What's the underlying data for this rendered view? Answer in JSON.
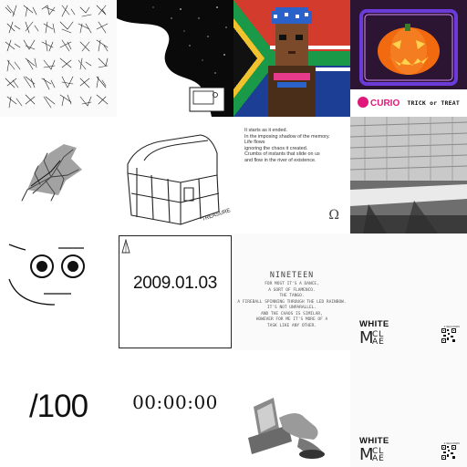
{
  "tiles": {
    "scribbles": {
      "icon": "scribble-grid"
    },
    "night_sky": {
      "icon": "computer-smoke-illustration"
    },
    "pixel_portrait": {
      "icon": "pixel-portrait-flag"
    },
    "halloween": {
      "brand": "CURIO",
      "title": "TRICK or TREAT",
      "colors": {
        "accent": "#e0177a",
        "frame": "#6a3bd8",
        "pumpkin": "#f26a10"
      }
    },
    "leaf": {
      "icon": "dry-leaf-sketch"
    },
    "chest": {
      "icon": "treasure-chest-sketch",
      "signature": "TREASURE"
    },
    "poem": {
      "lines": [
        "It starts as it ended.",
        "In the imposing shadow of the memory.",
        "Life flows",
        "ignoring the chaos it created.",
        "Crumbs of instants that slide on us",
        "and flow in the river of existence."
      ],
      "mark": "Ω"
    },
    "building": {
      "icon": "building-photo"
    },
    "face": {
      "icon": "smiley-face"
    },
    "date": {
      "text": "2009.01.03"
    },
    "nineteen": {
      "title": "NINETEEN",
      "lines": [
        "FOR MOST IT'S A DANCE,",
        "A SORT OF FLAMENCO.",
        "THE TANGO.",
        "A FIREBALL SPINNING THROUGH THE LED RAINBOW.",
        "IT'S NOT UNPARALLEL.",
        "AND THE CHAOS IS SIMILAR,",
        "HOWEVER FOR ME IT'S MORE OF A",
        "TASK LIKE ANY OTHER."
      ]
    },
    "white_1": {
      "title": "WHITE",
      "logo_top": "CL",
      "logo_bottom": "AE",
      "logo_m": "M",
      "qr_label": "2 SECONDS"
    },
    "hundred": {
      "text": "/100"
    },
    "clock": {
      "text": "00:00:00"
    },
    "hands": {
      "icon": "hands-computer-sculpture"
    },
    "white_2": {
      "title": "WHITE",
      "logo_top": "CL",
      "logo_bottom": "AE",
      "logo_m": "M",
      "qr_label": "2 SECONDS"
    }
  }
}
